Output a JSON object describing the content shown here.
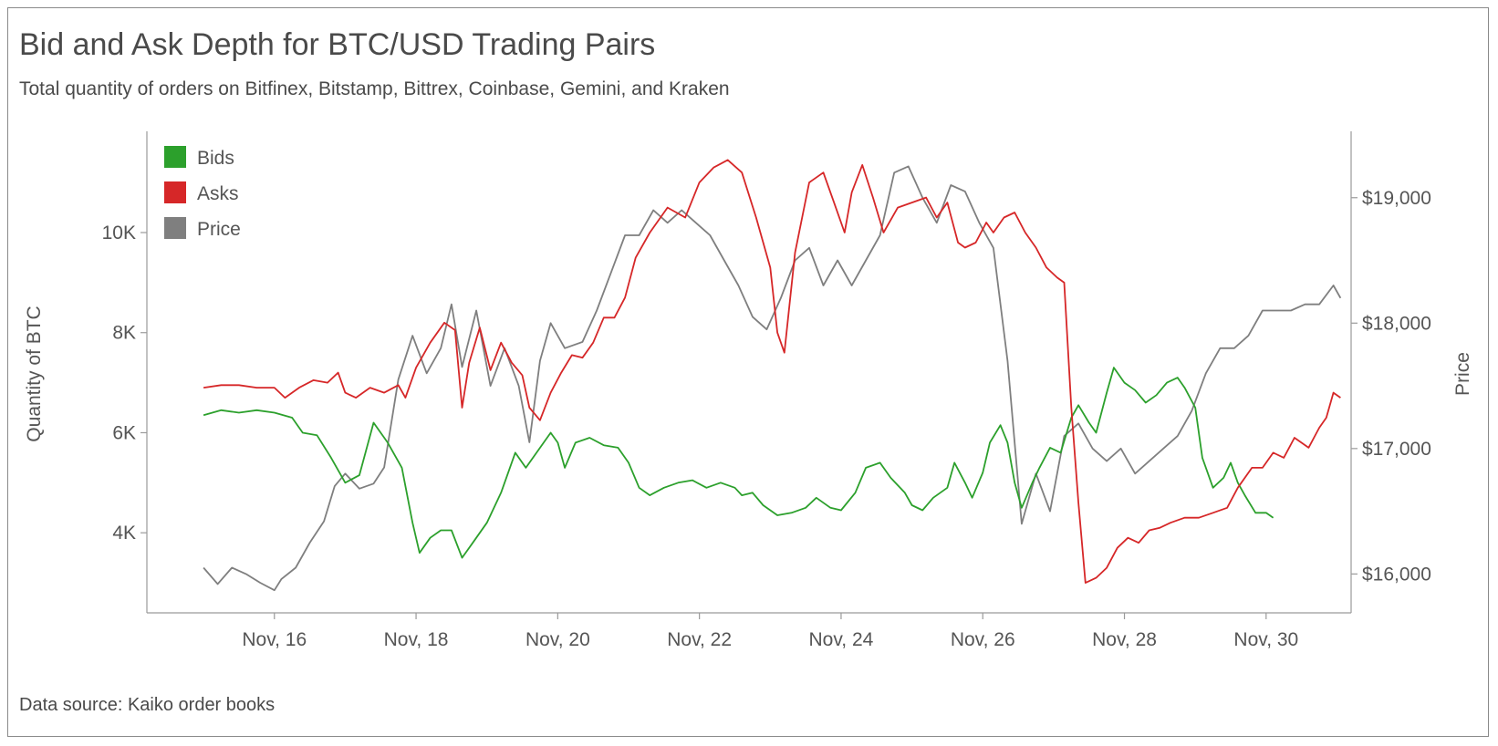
{
  "title": "Bid and Ask Depth for BTC/USD Trading Pairs",
  "subtitle": "Total quantity of orders on Bitfinex, Bitstamp, Bittrex, Coinbase, Gemini, and Kraken",
  "source": "Data source: Kaiko order books",
  "chart_data": {
    "type": "line",
    "ylabel": "Quantity of BTC",
    "y2label": "Price",
    "x_tick_labels": [
      "Nov, 16",
      "Nov, 18",
      "Nov, 20",
      "Nov, 22",
      "Nov, 24",
      "Nov, 26",
      "Nov, 28",
      "Nov, 30"
    ],
    "x_tick_days": [
      16,
      18,
      20,
      22,
      24,
      26,
      28,
      30
    ],
    "xlim": [
      14.2,
      31.2
    ],
    "y_left_ticks": [
      4000,
      6000,
      8000,
      10000
    ],
    "y_left_tick_labels": [
      "4K",
      "6K",
      "8K",
      "10K"
    ],
    "ylim_left": [
      2400,
      11950
    ],
    "y_right_ticks": [
      16000,
      17000,
      18000,
      19000
    ],
    "y_right_tick_labels": [
      "$16,000",
      "$17,000",
      "$18,000",
      "$19,000"
    ],
    "ylim_right": [
      15690,
      19500
    ],
    "legend_position": "top-left",
    "colors": {
      "Bids": "#2ca02c",
      "Asks": "#d62728",
      "Price": "#7f7f7f"
    },
    "series": [
      {
        "name": "Bids",
        "axis": "left",
        "points": [
          [
            15,
            6350
          ],
          [
            15.25,
            6450
          ],
          [
            15.5,
            6400
          ],
          [
            15.75,
            6450
          ],
          [
            16,
            6400
          ],
          [
            16.25,
            6300
          ],
          [
            16.4,
            6000
          ],
          [
            16.6,
            5950
          ],
          [
            16.8,
            5500
          ],
          [
            17.0,
            5000
          ],
          [
            17.2,
            5150
          ],
          [
            17.4,
            6200
          ],
          [
            17.6,
            5800
          ],
          [
            17.8,
            5300
          ],
          [
            17.95,
            4200
          ],
          [
            18.05,
            3600
          ],
          [
            18.2,
            3900
          ],
          [
            18.35,
            4050
          ],
          [
            18.5,
            4050
          ],
          [
            18.65,
            3500
          ],
          [
            18.8,
            3800
          ],
          [
            19.0,
            4200
          ],
          [
            19.2,
            4800
          ],
          [
            19.4,
            5600
          ],
          [
            19.55,
            5300
          ],
          [
            19.7,
            5600
          ],
          [
            19.9,
            6000
          ],
          [
            20.0,
            5800
          ],
          [
            20.1,
            5300
          ],
          [
            20.25,
            5800
          ],
          [
            20.45,
            5900
          ],
          [
            20.65,
            5750
          ],
          [
            20.85,
            5700
          ],
          [
            21.0,
            5400
          ],
          [
            21.15,
            4900
          ],
          [
            21.3,
            4750
          ],
          [
            21.5,
            4900
          ],
          [
            21.7,
            5000
          ],
          [
            21.9,
            5050
          ],
          [
            22.1,
            4900
          ],
          [
            22.3,
            5000
          ],
          [
            22.5,
            4900
          ],
          [
            22.6,
            4750
          ],
          [
            22.75,
            4800
          ],
          [
            22.9,
            4550
          ],
          [
            23.1,
            4350
          ],
          [
            23.3,
            4400
          ],
          [
            23.5,
            4500
          ],
          [
            23.65,
            4700
          ],
          [
            23.85,
            4500
          ],
          [
            24.0,
            4450
          ],
          [
            24.2,
            4800
          ],
          [
            24.35,
            5300
          ],
          [
            24.55,
            5400
          ],
          [
            24.7,
            5100
          ],
          [
            24.9,
            4800
          ],
          [
            25.0,
            4550
          ],
          [
            25.15,
            4450
          ],
          [
            25.3,
            4700
          ],
          [
            25.5,
            4900
          ],
          [
            25.6,
            5400
          ],
          [
            25.75,
            5000
          ],
          [
            25.85,
            4700
          ],
          [
            26.0,
            5200
          ],
          [
            26.1,
            5800
          ],
          [
            26.25,
            6150
          ],
          [
            26.35,
            5800
          ],
          [
            26.45,
            5000
          ],
          [
            26.55,
            4500
          ],
          [
            26.7,
            5000
          ],
          [
            26.8,
            5300
          ],
          [
            26.95,
            5700
          ],
          [
            27.1,
            5600
          ],
          [
            27.25,
            6300
          ],
          [
            27.35,
            6550
          ],
          [
            27.5,
            6200
          ],
          [
            27.6,
            6000
          ],
          [
            27.75,
            6800
          ],
          [
            27.85,
            7300
          ],
          [
            28.0,
            7000
          ],
          [
            28.15,
            6850
          ],
          [
            28.3,
            6600
          ],
          [
            28.45,
            6750
          ],
          [
            28.6,
            7000
          ],
          [
            28.75,
            7100
          ],
          [
            28.85,
            6900
          ],
          [
            29.0,
            6500
          ],
          [
            29.1,
            5500
          ],
          [
            29.25,
            4900
          ],
          [
            29.4,
            5100
          ],
          [
            29.5,
            5400
          ],
          [
            29.6,
            5000
          ],
          [
            29.7,
            4750
          ],
          [
            29.85,
            4400
          ],
          [
            30.0,
            4400
          ],
          [
            30.1,
            4300
          ]
        ]
      },
      {
        "name": "Asks",
        "axis": "left",
        "points": [
          [
            15,
            6900
          ],
          [
            15.25,
            6950
          ],
          [
            15.5,
            6950
          ],
          [
            15.75,
            6900
          ],
          [
            16.0,
            6900
          ],
          [
            16.15,
            6700
          ],
          [
            16.35,
            6900
          ],
          [
            16.55,
            7050
          ],
          [
            16.75,
            7000
          ],
          [
            16.9,
            7200
          ],
          [
            17.0,
            6800
          ],
          [
            17.15,
            6700
          ],
          [
            17.35,
            6900
          ],
          [
            17.55,
            6800
          ],
          [
            17.75,
            6950
          ],
          [
            17.85,
            6700
          ],
          [
            18.0,
            7300
          ],
          [
            18.2,
            7800
          ],
          [
            18.4,
            8200
          ],
          [
            18.55,
            8050
          ],
          [
            18.65,
            6500
          ],
          [
            18.75,
            7400
          ],
          [
            18.9,
            8100
          ],
          [
            19.05,
            7250
          ],
          [
            19.2,
            7800
          ],
          [
            19.35,
            7400
          ],
          [
            19.5,
            7150
          ],
          [
            19.6,
            6500
          ],
          [
            19.75,
            6250
          ],
          [
            19.9,
            6800
          ],
          [
            20.05,
            7200
          ],
          [
            20.2,
            7550
          ],
          [
            20.35,
            7500
          ],
          [
            20.5,
            7800
          ],
          [
            20.65,
            8300
          ],
          [
            20.8,
            8300
          ],
          [
            20.95,
            8700
          ],
          [
            21.1,
            9500
          ],
          [
            21.3,
            10000
          ],
          [
            21.55,
            10500
          ],
          [
            21.8,
            10300
          ],
          [
            22.0,
            11000
          ],
          [
            22.2,
            11300
          ],
          [
            22.4,
            11450
          ],
          [
            22.6,
            11200
          ],
          [
            22.8,
            10300
          ],
          [
            23.0,
            9300
          ],
          [
            23.1,
            8000
          ],
          [
            23.2,
            7600
          ],
          [
            23.35,
            9600
          ],
          [
            23.55,
            11000
          ],
          [
            23.75,
            11200
          ],
          [
            23.9,
            10600
          ],
          [
            24.05,
            10000
          ],
          [
            24.15,
            10800
          ],
          [
            24.3,
            11350
          ],
          [
            24.45,
            10700
          ],
          [
            24.6,
            10000
          ],
          [
            24.8,
            10500
          ],
          [
            25.0,
            10600
          ],
          [
            25.2,
            10700
          ],
          [
            25.35,
            10300
          ],
          [
            25.5,
            10600
          ],
          [
            25.65,
            9800
          ],
          [
            25.75,
            9700
          ],
          [
            25.9,
            9800
          ],
          [
            26.05,
            10200
          ],
          [
            26.15,
            10000
          ],
          [
            26.3,
            10300
          ],
          [
            26.45,
            10400
          ],
          [
            26.6,
            10000
          ],
          [
            26.75,
            9700
          ],
          [
            26.9,
            9300
          ],
          [
            27.05,
            9100
          ],
          [
            27.15,
            9000
          ],
          [
            27.25,
            6500
          ],
          [
            27.35,
            4600
          ],
          [
            27.45,
            3000
          ],
          [
            27.6,
            3100
          ],
          [
            27.75,
            3300
          ],
          [
            27.9,
            3700
          ],
          [
            28.05,
            3900
          ],
          [
            28.2,
            3800
          ],
          [
            28.35,
            4050
          ],
          [
            28.5,
            4100
          ],
          [
            28.65,
            4200
          ],
          [
            28.85,
            4300
          ],
          [
            29.05,
            4300
          ],
          [
            29.25,
            4400
          ],
          [
            29.45,
            4500
          ],
          [
            29.6,
            4900
          ],
          [
            29.8,
            5300
          ],
          [
            29.95,
            5300
          ],
          [
            30.1,
            5600
          ],
          [
            30.25,
            5500
          ],
          [
            30.4,
            5900
          ],
          [
            30.6,
            5700
          ],
          [
            30.75,
            6100
          ],
          [
            30.85,
            6300
          ],
          [
            30.95,
            6800
          ],
          [
            31.05,
            6700
          ]
        ]
      },
      {
        "name": "Price",
        "axis": "right",
        "points": [
          [
            15,
            16050
          ],
          [
            15.2,
            15920
          ],
          [
            15.4,
            16050
          ],
          [
            15.6,
            16000
          ],
          [
            15.8,
            15930
          ],
          [
            16.0,
            15870
          ],
          [
            16.1,
            15960
          ],
          [
            16.3,
            16050
          ],
          [
            16.5,
            16250
          ],
          [
            16.7,
            16420
          ],
          [
            16.85,
            16700
          ],
          [
            17.0,
            16800
          ],
          [
            17.2,
            16680
          ],
          [
            17.4,
            16720
          ],
          [
            17.55,
            16850
          ],
          [
            17.75,
            17550
          ],
          [
            17.95,
            17900
          ],
          [
            18.15,
            17600
          ],
          [
            18.35,
            17800
          ],
          [
            18.5,
            18150
          ],
          [
            18.65,
            17650
          ],
          [
            18.85,
            18100
          ],
          [
            19.05,
            17500
          ],
          [
            19.25,
            17800
          ],
          [
            19.45,
            17500
          ],
          [
            19.6,
            17050
          ],
          [
            19.75,
            17700
          ],
          [
            19.9,
            18000
          ],
          [
            20.1,
            17800
          ],
          [
            20.35,
            17850
          ],
          [
            20.55,
            18100
          ],
          [
            20.75,
            18400
          ],
          [
            20.95,
            18700
          ],
          [
            21.15,
            18700
          ],
          [
            21.35,
            18900
          ],
          [
            21.55,
            18800
          ],
          [
            21.75,
            18900
          ],
          [
            21.95,
            18800
          ],
          [
            22.15,
            18700
          ],
          [
            22.35,
            18500
          ],
          [
            22.55,
            18300
          ],
          [
            22.75,
            18050
          ],
          [
            22.95,
            17950
          ],
          [
            23.15,
            18200
          ],
          [
            23.35,
            18500
          ],
          [
            23.55,
            18600
          ],
          [
            23.75,
            18300
          ],
          [
            23.95,
            18500
          ],
          [
            24.15,
            18300
          ],
          [
            24.35,
            18500
          ],
          [
            24.55,
            18700
          ],
          [
            24.75,
            19200
          ],
          [
            24.95,
            19250
          ],
          [
            25.15,
            19000
          ],
          [
            25.35,
            18800
          ],
          [
            25.55,
            19100
          ],
          [
            25.75,
            19050
          ],
          [
            25.95,
            18800
          ],
          [
            26.15,
            18600
          ],
          [
            26.35,
            17700
          ],
          [
            26.55,
            16400
          ],
          [
            26.75,
            16800
          ],
          [
            26.95,
            16500
          ],
          [
            27.15,
            17100
          ],
          [
            27.35,
            17200
          ],
          [
            27.55,
            17000
          ],
          [
            27.75,
            16900
          ],
          [
            27.95,
            17000
          ],
          [
            28.15,
            16800
          ],
          [
            28.35,
            16900
          ],
          [
            28.55,
            17000
          ],
          [
            28.75,
            17100
          ],
          [
            28.95,
            17300
          ],
          [
            29.15,
            17600
          ],
          [
            29.35,
            17800
          ],
          [
            29.55,
            17800
          ],
          [
            29.75,
            17900
          ],
          [
            29.95,
            18100
          ],
          [
            30.15,
            18100
          ],
          [
            30.35,
            18100
          ],
          [
            30.55,
            18150
          ],
          [
            30.75,
            18150
          ],
          [
            30.95,
            18300
          ],
          [
            31.05,
            18200
          ]
        ]
      }
    ]
  }
}
